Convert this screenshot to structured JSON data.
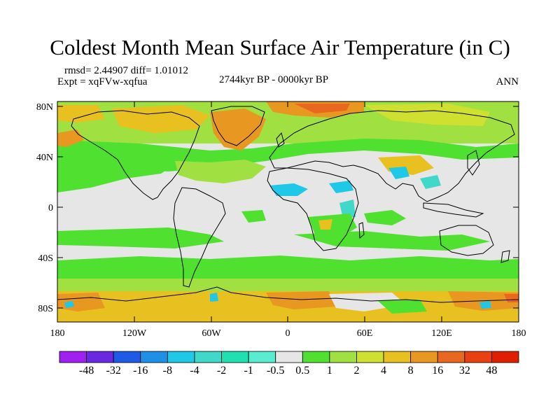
{
  "title": "Coldest Month Mean Surface Air Temperature (in C)",
  "stats": {
    "rmsd_label": "rmsd= 2.44907 diff= 1.01012"
  },
  "experiment": "Expt = xqFVw-xqfua",
  "period": "2744kyr BP - 0000kyr BP",
  "season": "ANN",
  "axes": {
    "lat_ticks": [
      "80N",
      "40N",
      "0",
      "40S",
      "80S"
    ],
    "lon_ticks": [
      "180",
      "120W",
      "60W",
      "0",
      "60E",
      "120E",
      "180"
    ]
  },
  "colorbar": {
    "labels": [
      "-48",
      "-32",
      "-16",
      "-8",
      "-4",
      "-2",
      "-1",
      "-0.5",
      "0.5",
      "1",
      "2",
      "4",
      "8",
      "16",
      "32",
      "48"
    ],
    "colors": [
      "#a020f0",
      "#6a28e0",
      "#1e5ae6",
      "#1e90e6",
      "#1ec8e6",
      "#40d8c8",
      "#20e0b0",
      "#58ecd0",
      "#e6e6e6",
      "#50e030",
      "#a0e040",
      "#d0e030",
      "#e8c020",
      "#e89820",
      "#e86820",
      "#e84010",
      "#e01e00"
    ]
  },
  "map_colors": {
    "neutral": "#e6e6e6",
    "green1": "#50e030",
    "green2": "#a0e040",
    "yellow": "#d0e030",
    "gold": "#e8c020",
    "orange": "#e89820",
    "deep_orange": "#e86820",
    "cyan": "#1ec8e6",
    "teal": "#40d8c8",
    "coast": "#000000"
  }
}
